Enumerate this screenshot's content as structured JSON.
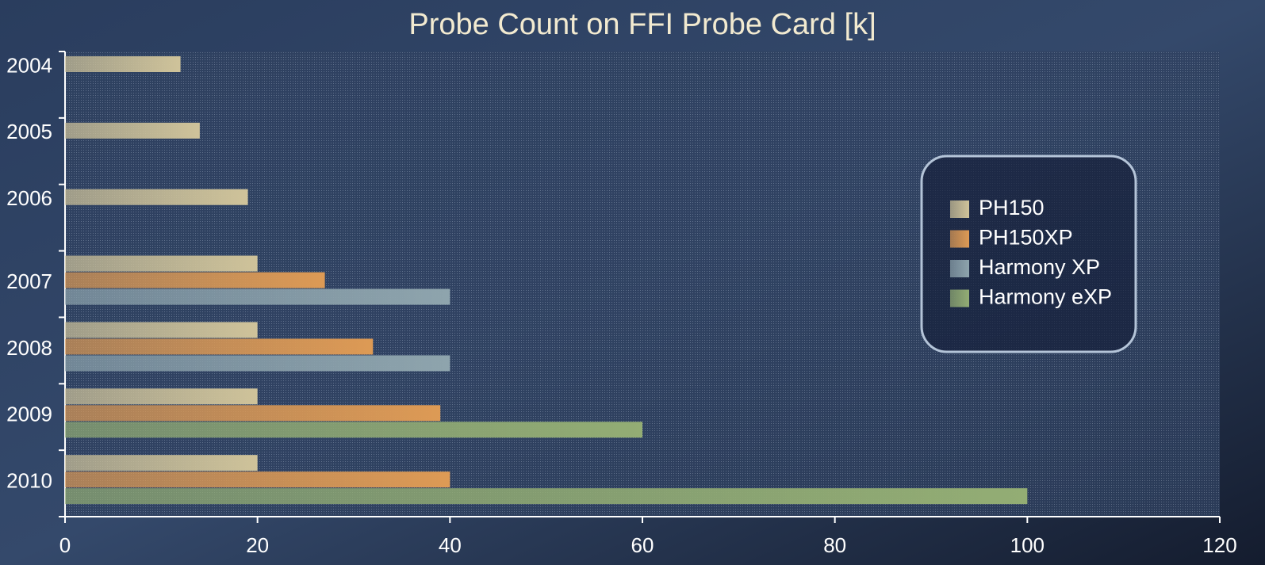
{
  "chart_data": {
    "type": "hbar",
    "title": "Probe Count on FFI Probe Card [k]",
    "categories": [
      "2004",
      "2005",
      "2006",
      "2007",
      "2008",
      "2009",
      "2010"
    ],
    "series": [
      {
        "name": "PH150",
        "color": "#cfc39a",
        "values": [
          12,
          14,
          19,
          20,
          20,
          20,
          20
        ]
      },
      {
        "name": "PH150XP",
        "color": "#dd9a55",
        "values": [
          null,
          null,
          null,
          27,
          32,
          39,
          40
        ]
      },
      {
        "name": "Harmony XP",
        "color": "#8ea4ad",
        "values": [
          null,
          null,
          null,
          40,
          40,
          null,
          null
        ]
      },
      {
        "name": "Harmony eXP",
        "color": "#93ad74",
        "values": [
          null,
          null,
          null,
          null,
          null,
          60,
          100
        ]
      }
    ],
    "xlim": [
      0,
      120
    ],
    "xticks": [
      0,
      20,
      40,
      60,
      80,
      100,
      120
    ],
    "legend": "right"
  }
}
